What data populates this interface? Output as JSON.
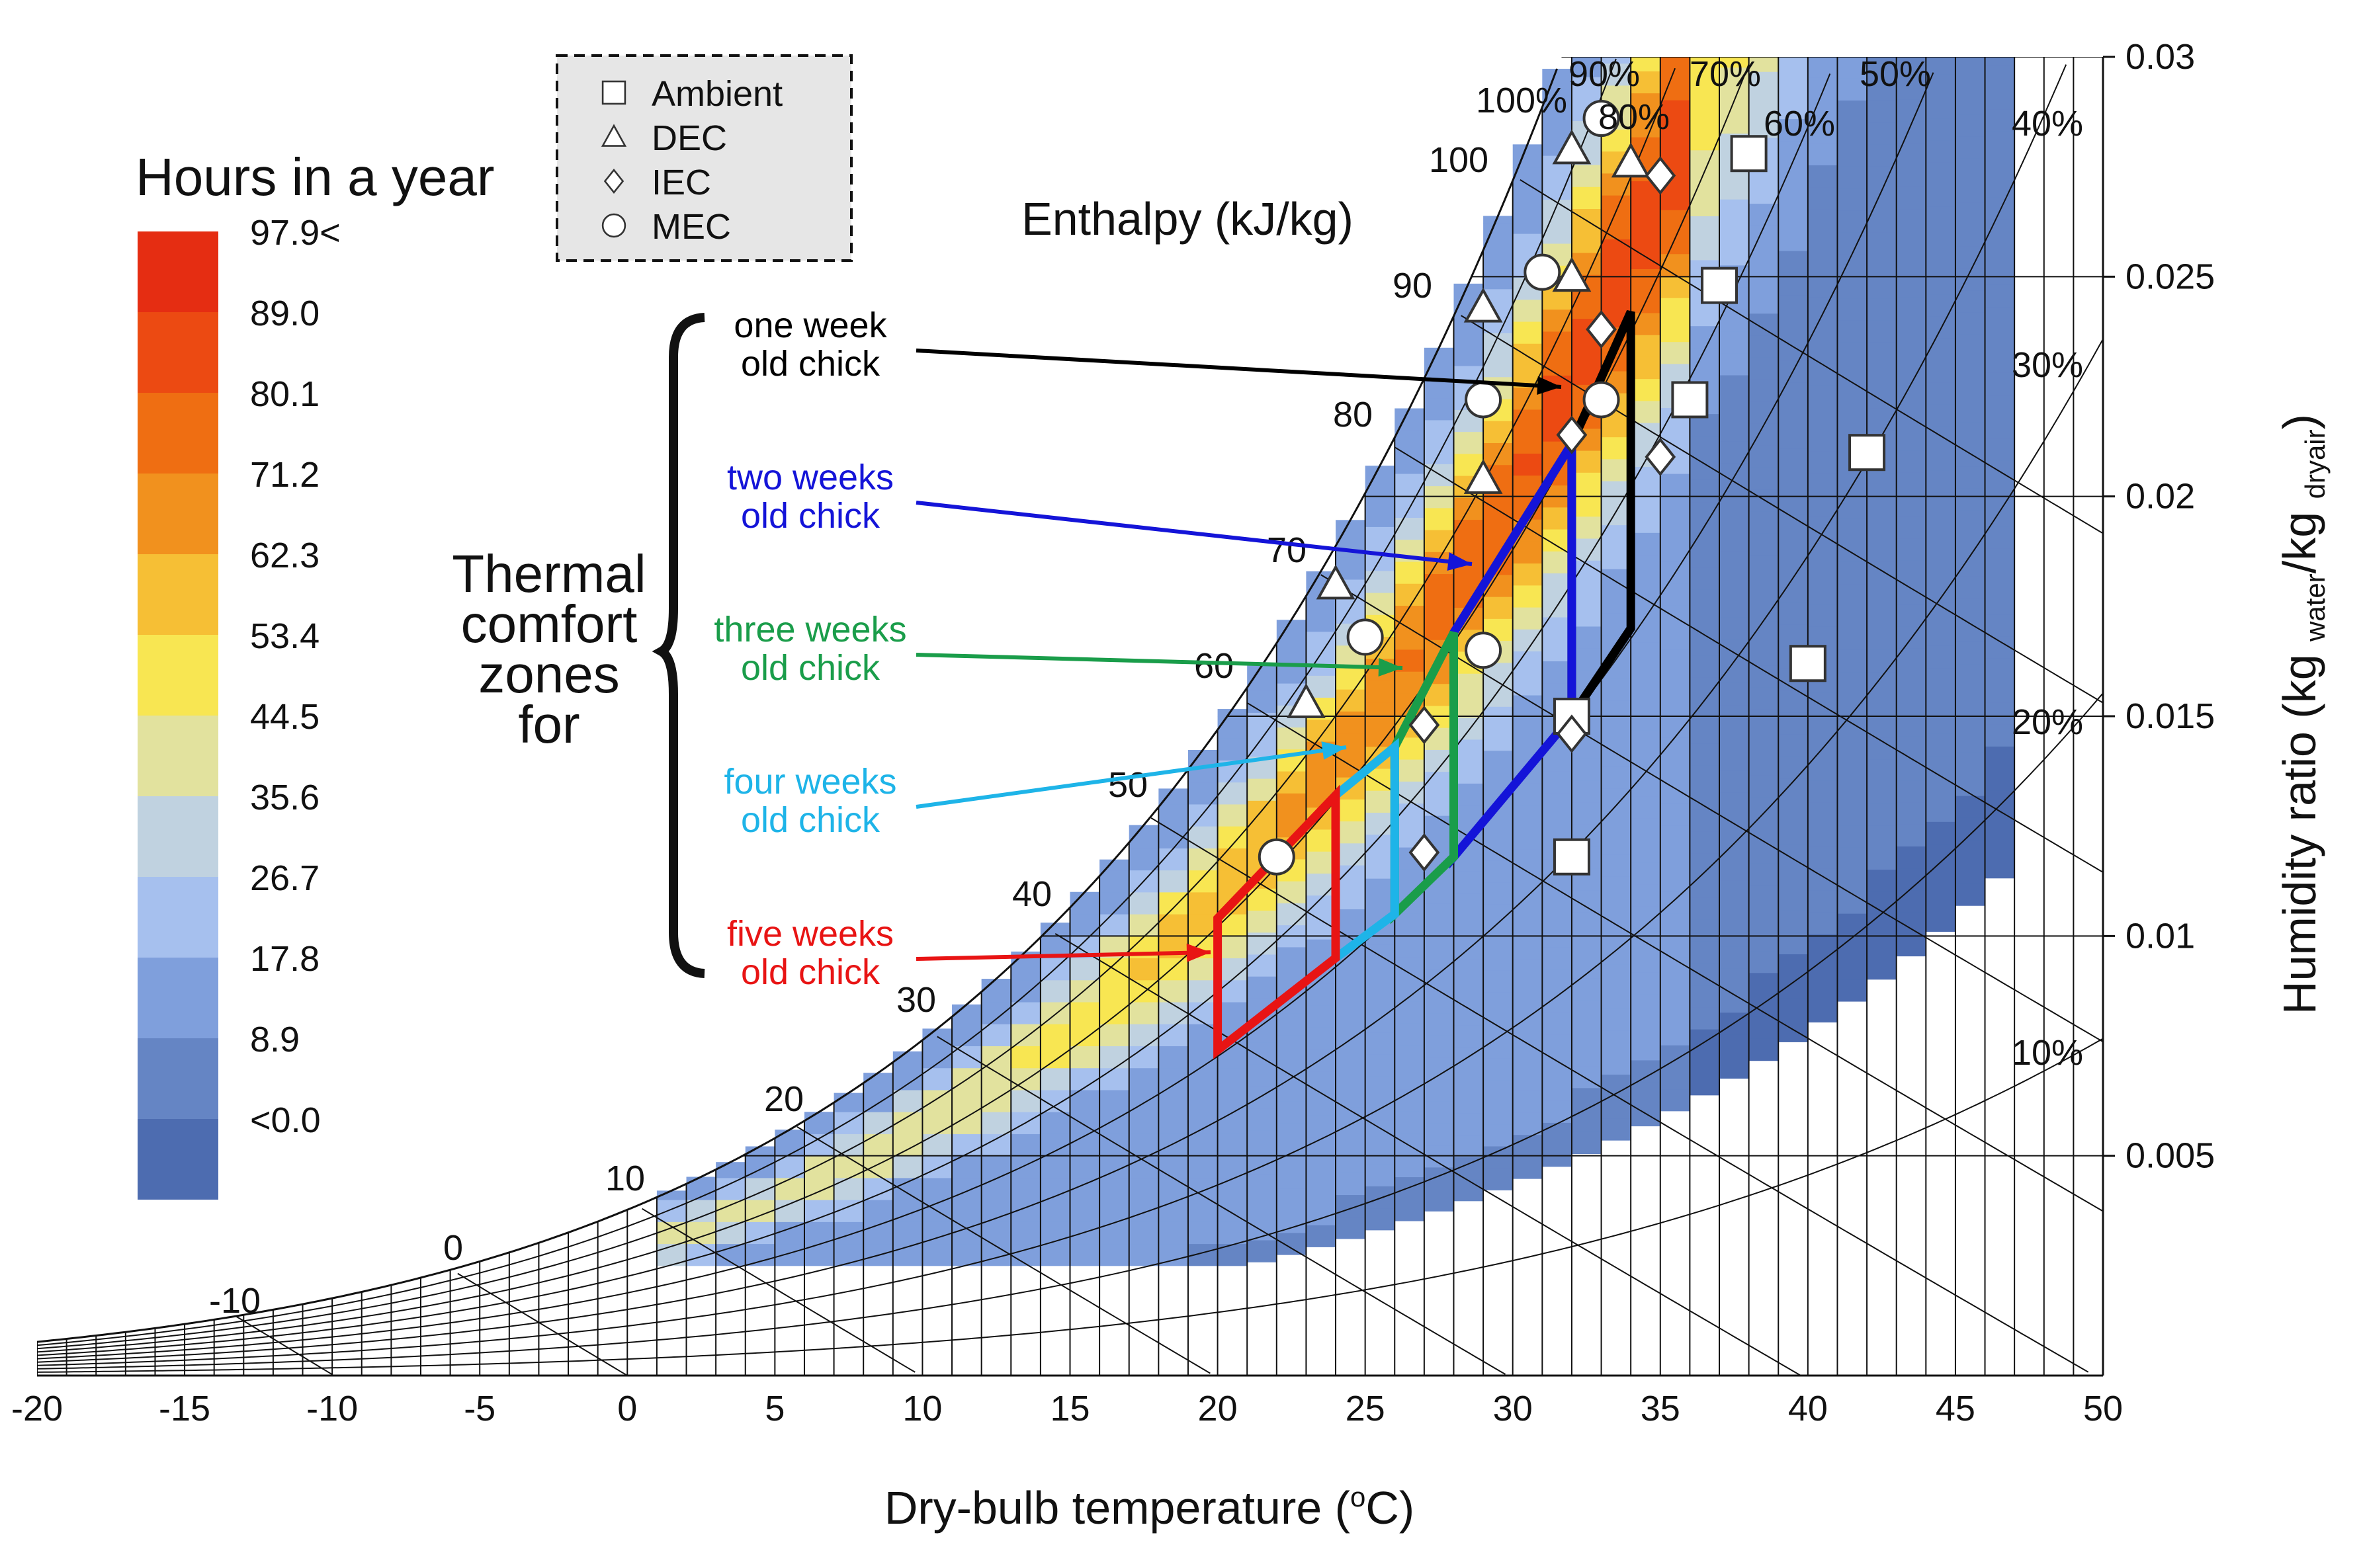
{
  "chart_data": {
    "type": "heatmap",
    "title": "",
    "xlabel": "Dry-bulb temperature (°C)",
    "ylabel": "Humidity ratio (kg water/kg dryair)",
    "ylabel_main": "Humidity ratio (kg ",
    "ylabel_sub1": "water",
    "ylabel_mid": "/kg ",
    "ylabel_sub2": "dryair",
    "ylabel_end": ")",
    "xlabel_main": "Dry-bulb temperature (",
    "xlabel_deg": "o",
    "xlabel_end": "C)",
    "xlim": [
      -20,
      50
    ],
    "ylim": [
      0,
      0.03
    ],
    "x_ticks": [
      -20,
      -15,
      -10,
      -5,
      0,
      5,
      10,
      15,
      20,
      25,
      30,
      35,
      40,
      45,
      50
    ],
    "x_tick_labels": [
      "-20",
      "-15",
      "-10",
      "-5",
      "0",
      "5",
      "10",
      "15",
      "20",
      "25",
      "30",
      "35",
      "40",
      "45",
      "50"
    ],
    "y_ticks": [
      0.005,
      0.01,
      0.015,
      0.02,
      0.025,
      0.03
    ],
    "y_tick_labels": [
      "0.005",
      "0.01",
      "0.015",
      "0.02",
      "0.025",
      "0.03"
    ],
    "grid": true,
    "rh_lines": [
      {
        "rh": 1.0,
        "label": "100%"
      },
      {
        "rh": 0.9,
        "label": "90%"
      },
      {
        "rh": 0.8,
        "label": "80%"
      },
      {
        "rh": 0.7,
        "label": "70%"
      },
      {
        "rh": 0.6,
        "label": "60%"
      },
      {
        "rh": 0.5,
        "label": "50%"
      },
      {
        "rh": 0.4,
        "label": "40%"
      },
      {
        "rh": 0.3,
        "label": "30%"
      },
      {
        "rh": 0.2,
        "label": "20%"
      },
      {
        "rh": 0.1,
        "label": "10%"
      }
    ],
    "enthalpy_title": "Enthalpy (kJ/kg)",
    "enthalpy_lines": [
      -10,
      0,
      10,
      20,
      30,
      40,
      50,
      60,
      70,
      80,
      90,
      100
    ],
    "enthalpy_labels": [
      "-10",
      "0",
      "10",
      "20",
      "30",
      "40",
      "50",
      "60",
      "70",
      "80",
      "90",
      "100"
    ],
    "colorbar": {
      "title": "Hours in a year",
      "labels": [
        "97.9<",
        "89.0",
        "80.1",
        "71.2",
        "62.3",
        "53.4",
        "44.5",
        "35.6",
        "26.7",
        "17.8",
        "8.9",
        "<0.0"
      ],
      "colors": [
        "#e52d12",
        "#ec4a12",
        "#ef6e12",
        "#f1911e",
        "#f6bf35",
        "#f8e652",
        "#e2e29e",
        "#c0d2e0",
        "#a6c0ee",
        "#7f9fdc",
        "#6585c4",
        "#4d6cb0"
      ]
    },
    "legend": {
      "position": "top",
      "entries": [
        {
          "marker": "square",
          "label": "Ambient"
        },
        {
          "marker": "triangle",
          "label": "DEC"
        },
        {
          "marker": "diamond",
          "label": "IEC"
        },
        {
          "marker": "circle",
          "label": "MEC"
        }
      ]
    },
    "zones_title": "Thermal comfort zones for",
    "zones_title_lines": [
      "Thermal",
      "comfort",
      "zones",
      "for"
    ],
    "zones": [
      {
        "label_lines": [
          "one week",
          "old chick"
        ],
        "color": "#000000",
        "polygon": [
          [
            32,
            0.0212
          ],
          [
            34,
            0.0242
          ],
          [
            34,
            0.017
          ],
          [
            32,
            0.015
          ]
        ]
      },
      {
        "label_lines": [
          "two weeks",
          "old chick"
        ],
        "color": "#1414d8",
        "polygon": [
          [
            28,
            0.0169
          ],
          [
            32,
            0.0212
          ],
          [
            32,
            0.015
          ],
          [
            28,
            0.0118
          ]
        ]
      },
      {
        "label_lines": [
          "three weeks",
          "old chick"
        ],
        "color": "#1a9d4a",
        "polygon": [
          [
            26,
            0.0143
          ],
          [
            28,
            0.0169
          ],
          [
            28,
            0.0118
          ],
          [
            26,
            0.0105
          ]
        ]
      },
      {
        "label_lines": [
          "four weeks",
          "old chick"
        ],
        "color": "#1eb4e8",
        "polygon": [
          [
            24,
            0.0132
          ],
          [
            26,
            0.0143
          ],
          [
            26,
            0.0105
          ],
          [
            24,
            0.0095
          ]
        ]
      },
      {
        "label_lines": [
          "five weeks",
          "old chick"
        ],
        "color": "#e81414",
        "polygon": [
          [
            20,
            0.0104
          ],
          [
            24,
            0.0132
          ],
          [
            24,
            0.0095
          ],
          [
            20,
            0.0074
          ]
        ]
      }
    ],
    "series": [
      {
        "name": "Ambient",
        "marker": "square",
        "points": [
          [
            38,
            0.0278
          ],
          [
            37,
            0.0248
          ],
          [
            36,
            0.0222
          ],
          [
            42,
            0.021
          ],
          [
            40,
            0.0162
          ],
          [
            32,
            0.015
          ],
          [
            32,
            0.0118
          ]
        ]
      },
      {
        "name": "DEC",
        "marker": "triangle",
        "points": [
          [
            32,
            0.0279
          ],
          [
            34,
            0.0276
          ],
          [
            29,
            0.0243
          ],
          [
            32,
            0.025
          ],
          [
            29,
            0.0204
          ],
          [
            24,
            0.018
          ],
          [
            23,
            0.0153
          ]
        ]
      },
      {
        "name": "IEC",
        "marker": "diamond",
        "points": [
          [
            35,
            0.0273
          ],
          [
            33,
            0.0238
          ],
          [
            32,
            0.0214
          ],
          [
            35,
            0.0209
          ],
          [
            27,
            0.0148
          ],
          [
            32,
            0.0146
          ],
          [
            27,
            0.0119
          ]
        ]
      },
      {
        "name": "MEC",
        "marker": "circle",
        "points": [
          [
            33,
            0.0286
          ],
          [
            31,
            0.0251
          ],
          [
            29,
            0.0222
          ],
          [
            33,
            0.0222
          ],
          [
            25,
            0.0168
          ],
          [
            29,
            0.0165
          ],
          [
            22,
            0.0118
          ]
        ]
      }
    ]
  }
}
